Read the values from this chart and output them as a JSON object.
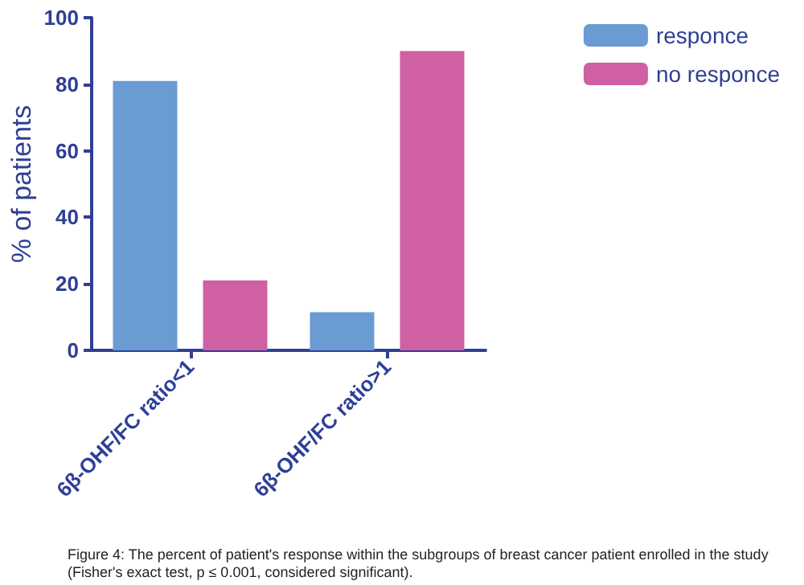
{
  "chart_data": {
    "type": "bar",
    "ylabel": "% of patients",
    "categories": [
      "6β-OHF/FC ratio<1",
      "6β-OHF/FC ratio>1"
    ],
    "series": [
      {
        "name": "responce",
        "color": "#6a9bd2",
        "values": [
          81,
          11.5
        ]
      },
      {
        "name": "no responce",
        "color": "#cf60a4",
        "values": [
          21,
          90
        ]
      }
    ],
    "ylim": [
      0,
      100
    ],
    "yticks": [
      0,
      20,
      40,
      60,
      80,
      100
    ],
    "grid": false,
    "legend": "top right",
    "annotations": [
      "Figure 4: The percent of patient's response within the subgroups of breast cancer patient enrolled in the study (Fisher's exact test, p ≤ 0.001, considered significant)."
    ]
  }
}
